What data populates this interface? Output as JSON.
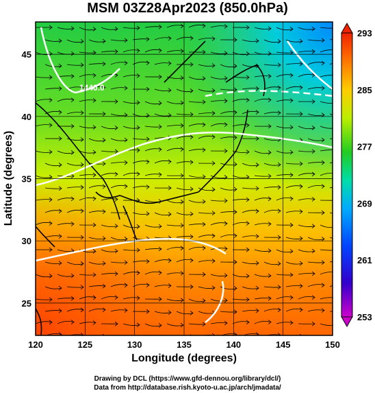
{
  "title": "MSM 03Z28Apr2023 (850.0hPa)",
  "xaxis": {
    "label": "Longitude (degrees)",
    "ticks": [
      "120",
      "125",
      "130",
      "135",
      "140",
      "145",
      "150"
    ]
  },
  "yaxis": {
    "label": "Latitude  (degrees)",
    "ticks": [
      "45",
      "40",
      "35",
      "30",
      "25"
    ]
  },
  "colorbar": {
    "ticks": [
      "293",
      "285",
      "277",
      "269",
      "261",
      "253"
    ]
  },
  "contour_label": "1440.0",
  "credits": {
    "line1": "Drawing by DCL (https://www.gfd-dennou.org/library/dcl/)",
    "line2": "Data from http://database.rish.kyoto-u.ac.jp/arch/jmadata/"
  },
  "chart_data": {
    "type": "heatmap",
    "x_range": [
      120,
      150
    ],
    "y_range": [
      22.4,
      47.6
    ],
    "color_range": [
      253,
      293
    ],
    "x_ticks": [
      120,
      125,
      130,
      135,
      140,
      145,
      150
    ],
    "y_ticks": [
      25,
      30,
      35,
      40,
      45
    ],
    "colorbar_ticks": [
      253,
      261,
      269,
      277,
      285,
      293
    ],
    "grid": true,
    "overlays": [
      "streamlines",
      "geopotential-height-contours",
      "coastlines"
    ],
    "contour_labels": [
      1440.0
    ]
  }
}
